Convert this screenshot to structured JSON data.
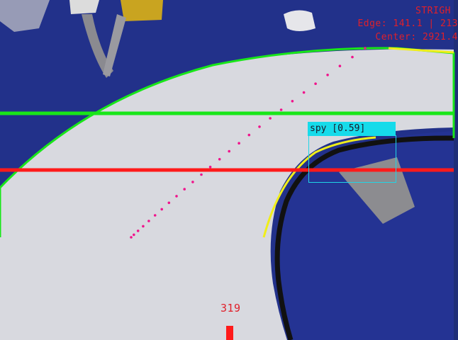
{
  "hud": {
    "mode": "STRIGH",
    "edge": "Edge: 141.1 | 213",
    "center": "Center: 2921.4"
  },
  "detection": {
    "label": "spy [0.59]",
    "color": "#16dbea"
  },
  "steering": {
    "value": "319"
  },
  "overlay_colors": {
    "top_line": "#19e619",
    "bottom_line": "#ff1a1a",
    "outer_edge": "#19e619",
    "inner_edge": "#f0ee1a",
    "path_dots": "#f0148c"
  }
}
